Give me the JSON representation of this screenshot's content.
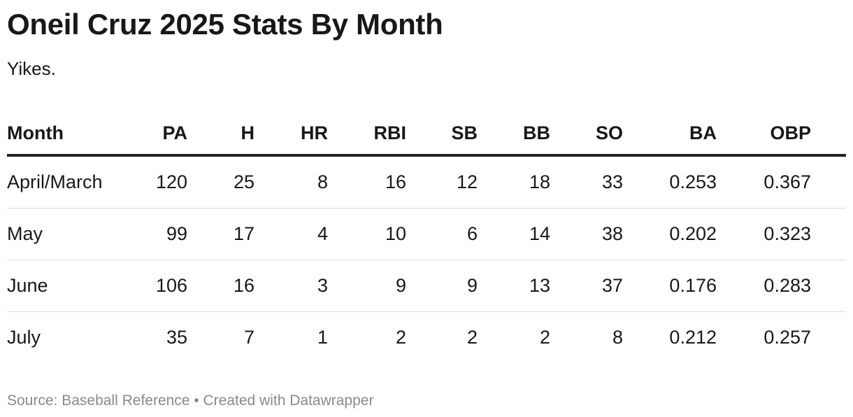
{
  "chart_data": {
    "type": "table",
    "title": "Oneil Cruz 2025 Stats By Month",
    "subtitle": "Yikes.",
    "columns": [
      "Month",
      "PA",
      "H",
      "HR",
      "RBI",
      "SB",
      "BB",
      "SO",
      "BA",
      "OBP"
    ],
    "rows": [
      [
        "April/March",
        "120",
        "25",
        "8",
        "16",
        "12",
        "18",
        "33",
        "0.253",
        "0.367"
      ],
      [
        "May",
        "99",
        "17",
        "4",
        "10",
        "6",
        "14",
        "38",
        "0.202",
        "0.323"
      ],
      [
        "June",
        "106",
        "16",
        "3",
        "9",
        "9",
        "13",
        "37",
        "0.176",
        "0.283"
      ],
      [
        "July",
        "35",
        "7",
        "1",
        "2",
        "2",
        "2",
        "8",
        "0.212",
        "0.257"
      ]
    ],
    "footer": "Source: Baseball Reference • Created with Datawrapper"
  }
}
